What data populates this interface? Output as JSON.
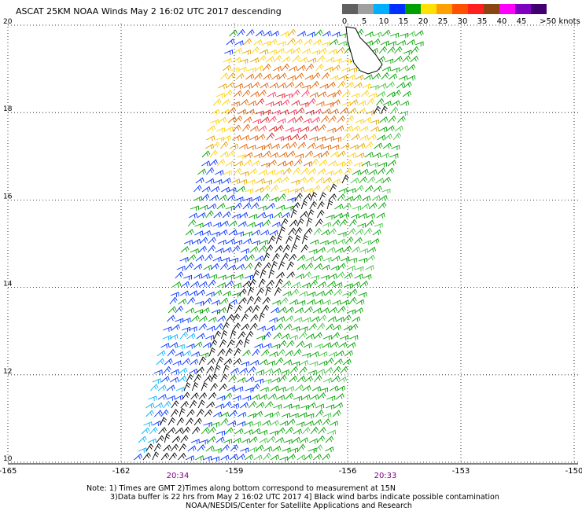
{
  "header": {
    "title": "ASCAT 25KM NOAA Winds  May  2 16:02 UTC 2017 descending"
  },
  "colorbar": {
    "labels": [
      "0",
      "5",
      "10",
      "15",
      "20",
      "25",
      "30",
      "35",
      "40",
      "45",
      ">50 knots"
    ],
    "colors": [
      "#606060",
      "#a0a0a0",
      "#00b0ff",
      "#0030ff",
      "#00a000",
      "#ffe000",
      "#ffa000",
      "#ff5000",
      "#ff2020",
      "#8b4513",
      "#ff00ff",
      "#8000c0",
      "#400070"
    ]
  },
  "map": {
    "lat_ticks": [
      10,
      12,
      14,
      16,
      18,
      20
    ],
    "lon_ticks": [
      -165,
      -162,
      -159,
      -156,
      -153,
      -150
    ],
    "latlim": [
      10,
      20
    ],
    "lonlim": [
      -165,
      -150
    ],
    "grid": true,
    "pass_times": [
      {
        "label": "20:34",
        "lon": -160.5
      },
      {
        "label": "20:33",
        "lon": -155
      }
    ]
  },
  "notes": [
    "Note: 1) Times are GMT 2)Times along bottom correspond to measurement at 15N",
    "3)Data buffer is 22 hrs from May  2 16:02 UTC 2017 4] Black wind barbs indicate possible contamination",
    "NOAA/NESDIS/Center for Satellite Applications and Research"
  ]
}
